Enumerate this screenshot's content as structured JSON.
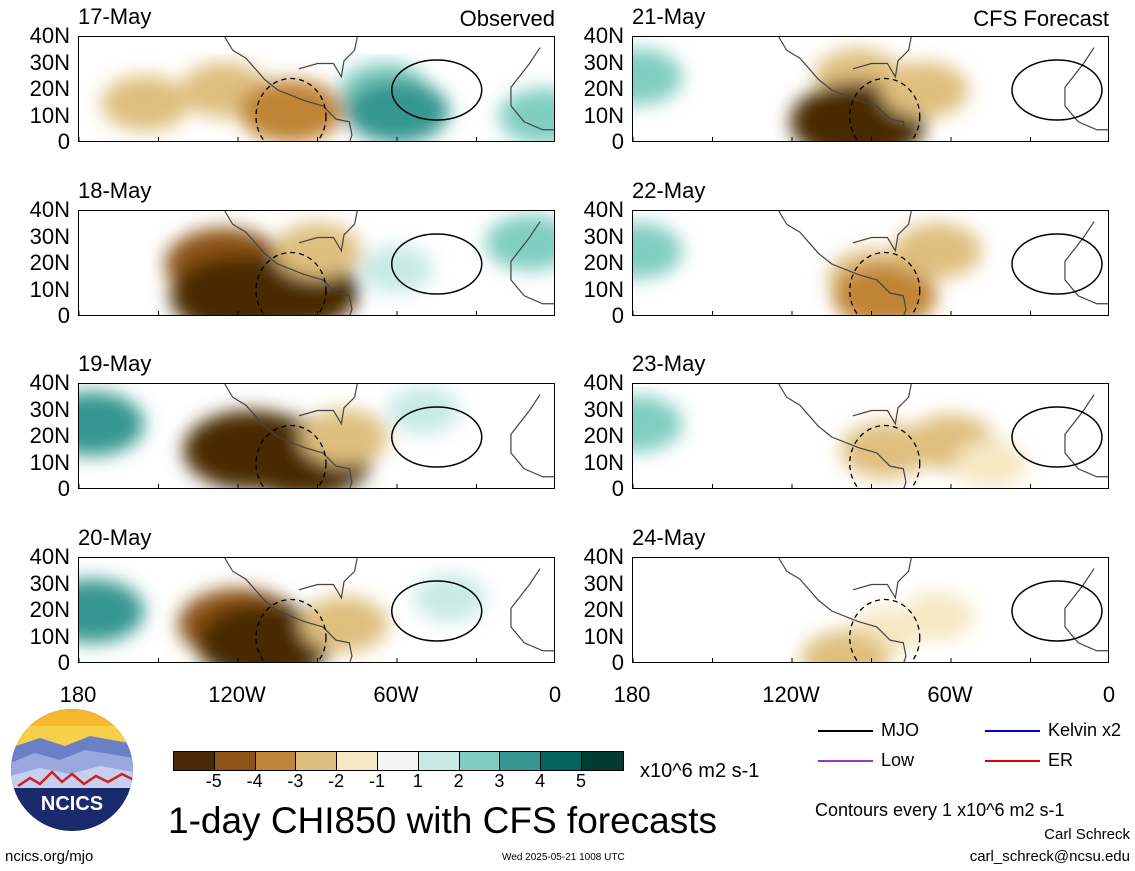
{
  "panels_left": [
    {
      "date": "17-May",
      "tag": "Observed"
    },
    {
      "date": "18-May",
      "tag": ""
    },
    {
      "date": "19-May",
      "tag": ""
    },
    {
      "date": "20-May",
      "tag": ""
    }
  ],
  "panels_right": [
    {
      "date": "21-May",
      "tag": "CFS Forecast"
    },
    {
      "date": "22-May",
      "tag": ""
    },
    {
      "date": "23-May",
      "tag": ""
    },
    {
      "date": "24-May",
      "tag": ""
    }
  ],
  "y_ticks": [
    "40N",
    "30N",
    "20N",
    "10N",
    "0"
  ],
  "x_ticks": [
    "180",
    "120W",
    "60W",
    "0"
  ],
  "colorbar": {
    "labels": [
      "-5",
      "-4",
      "-3",
      "-2",
      "-1",
      "1",
      "2",
      "3",
      "4",
      "5"
    ],
    "colors": [
      "#4a2a06",
      "#8c5216",
      "#bf8436",
      "#dfbf7e",
      "#f6e8c3",
      "#f5f5f5",
      "#c7eae5",
      "#80cdc1",
      "#35978f",
      "#01665e",
      "#003c30"
    ],
    "units": "x10^6 m2 s-1"
  },
  "legend": [
    {
      "label": "MJO",
      "color": "#000000"
    },
    {
      "label": "Kelvin x2",
      "color": "#0000cc"
    },
    {
      "label": "Low",
      "color": "#9933cc"
    },
    {
      "label": "ER",
      "color": "#dd0000"
    }
  ],
  "title": "1-day CHI850 with CFS forecasts",
  "contour_note": "Contours every 1 x10^6 m2 s-1",
  "author": "Carl Schreck",
  "email": "carl_schreck@ncsu.edu",
  "url": "ncics.org/mjo",
  "timestamp": "Wed 2025-05-21 1008 UTC",
  "logo_text": "NCICS",
  "chart_data": {
    "type": "heatmap",
    "title": "1-day CHI850 with CFS forecasts",
    "units": "x10^6 m2 s-1",
    "x_ticks": [
      "180",
      "120W",
      "60W",
      "0"
    ],
    "y_ticks": [
      "40N",
      "30N",
      "20N",
      "10N",
      "0"
    ],
    "xlim": [
      -180,
      0
    ],
    "ylim": [
      0,
      40
    ],
    "color_levels": [
      -5,
      -4,
      -3,
      -2,
      -1,
      1,
      2,
      3,
      4,
      5
    ],
    "panels": [
      {
        "date": "17-May",
        "source": "Observed",
        "features": [
          {
            "lon": -155,
            "lat": 15,
            "value": -2
          },
          {
            "lon": -125,
            "lat": 20,
            "value": -2
          },
          {
            "lon": -100,
            "lat": 12,
            "value": -3
          },
          {
            "lon": -65,
            "lat": 20,
            "value": 2
          },
          {
            "lon": -60,
            "lat": 12,
            "value": 3
          },
          {
            "lon": -5,
            "lat": 10,
            "value": 2
          }
        ]
      },
      {
        "date": "18-May",
        "source": "Observed",
        "features": [
          {
            "lon": -125,
            "lat": 20,
            "value": -4
          },
          {
            "lon": -120,
            "lat": 8,
            "value": -5
          },
          {
            "lon": -100,
            "lat": 10,
            "value": -5
          },
          {
            "lon": -90,
            "lat": 25,
            "value": -2
          },
          {
            "lon": -60,
            "lat": 18,
            "value": 1
          },
          {
            "lon": -10,
            "lat": 28,
            "value": 2
          }
        ]
      },
      {
        "date": "19-May",
        "source": "Observed",
        "features": [
          {
            "lon": -175,
            "lat": 25,
            "value": 3
          },
          {
            "lon": -115,
            "lat": 15,
            "value": -5
          },
          {
            "lon": -95,
            "lat": 12,
            "value": -5
          },
          {
            "lon": -80,
            "lat": 20,
            "value": -2
          },
          {
            "lon": -50,
            "lat": 30,
            "value": 1
          }
        ]
      },
      {
        "date": "20-May",
        "source": "Observed",
        "features": [
          {
            "lon": -175,
            "lat": 20,
            "value": 3
          },
          {
            "lon": -120,
            "lat": 15,
            "value": -4
          },
          {
            "lon": -110,
            "lat": 8,
            "value": -5
          },
          {
            "lon": -80,
            "lat": 15,
            "value": -2
          },
          {
            "lon": -40,
            "lat": 25,
            "value": 1
          }
        ]
      },
      {
        "date": "21-May",
        "source": "CFS Forecast",
        "features": [
          {
            "lon": -178,
            "lat": 25,
            "value": 2
          },
          {
            "lon": -95,
            "lat": 25,
            "value": -2
          },
          {
            "lon": -95,
            "lat": 8,
            "value": -5
          },
          {
            "lon": -70,
            "lat": 20,
            "value": -2
          }
        ]
      },
      {
        "date": "22-May",
        "source": "CFS Forecast",
        "features": [
          {
            "lon": -178,
            "lat": 25,
            "value": 2
          },
          {
            "lon": -90,
            "lat": 15,
            "value": -2
          },
          {
            "lon": -85,
            "lat": 8,
            "value": -3
          },
          {
            "lon": -65,
            "lat": 25,
            "value": -2
          }
        ]
      },
      {
        "date": "23-May",
        "source": "CFS Forecast",
        "features": [
          {
            "lon": -178,
            "lat": 25,
            "value": 2
          },
          {
            "lon": -85,
            "lat": 15,
            "value": -2
          },
          {
            "lon": -60,
            "lat": 18,
            "value": -2
          },
          {
            "lon": -45,
            "lat": 10,
            "value": -1
          }
        ]
      },
      {
        "date": "24-May",
        "source": "CFS Forecast",
        "features": [
          {
            "lon": -85,
            "lat": 12,
            "value": -1
          },
          {
            "lon": -65,
            "lat": 18,
            "value": -1
          },
          {
            "lon": -100,
            "lat": 2,
            "value": -2
          }
        ]
      }
    ]
  }
}
